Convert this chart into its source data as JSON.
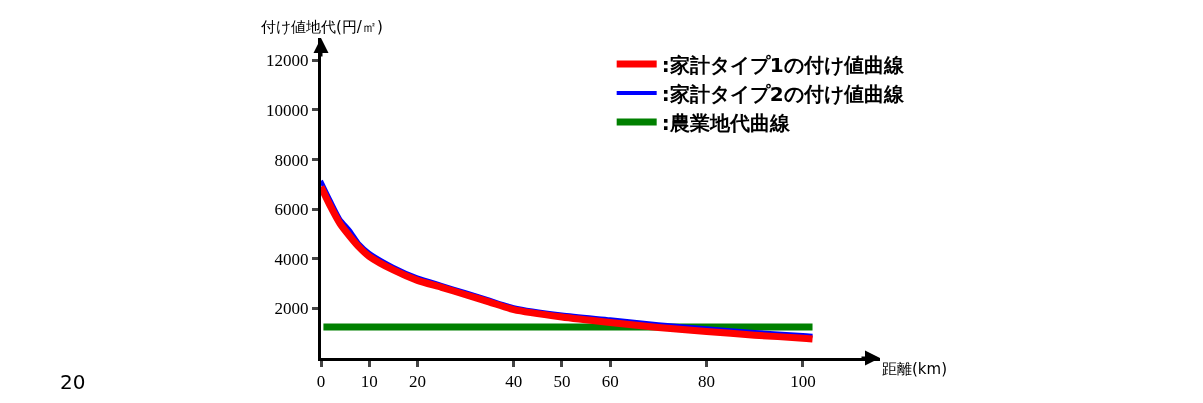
{
  "chart_data": {
    "type": "line",
    "xlabel": "距離(km)",
    "ylabel": "付け値地代(円/㎡)",
    "series": [
      {
        "name": ":家計タイプ1の付け値曲線",
        "color": "#ff0000",
        "x": [
          0,
          2,
          4,
          6,
          8,
          10,
          15,
          20,
          25,
          30,
          35,
          40,
          50,
          60,
          70,
          80,
          90,
          100,
          102
        ],
        "values": [
          6900,
          6100,
          5400,
          4900,
          4450,
          4100,
          3550,
          3130,
          2850,
          2550,
          2250,
          1950,
          1650,
          1430,
          1230,
          1070,
          920,
          800,
          770
        ]
      },
      {
        "name": ":家計タイプ2の付け値曲線",
        "color": "#0000ff",
        "x": [
          0,
          2,
          4,
          6,
          8,
          10,
          15,
          20,
          25,
          30,
          35,
          40,
          50,
          60,
          70,
          80,
          90,
          100,
          102
        ],
        "values": [
          7150,
          6350,
          5600,
          5150,
          4600,
          4250,
          3680,
          3250,
          2950,
          2650,
          2350,
          2050,
          1750,
          1560,
          1360,
          1200,
          1050,
          930,
          900
        ]
      },
      {
        "name": ":農業地代曲線",
        "color": "#008000",
        "x": [
          0.5,
          102
        ],
        "values": [
          1250,
          1250
        ]
      }
    ],
    "xlim": [
      0,
      116
    ],
    "xticks": [
      0,
      10,
      20,
      40,
      50,
      60,
      80,
      100
    ],
    "ylim": [
      0,
      12900
    ],
    "yticks": [
      2000,
      4000,
      6000,
      8000,
      10000,
      12000
    ],
    "legend": "top right",
    "marker": "none",
    "line_style": "solid",
    "annotations": [
      "20"
    ]
  }
}
